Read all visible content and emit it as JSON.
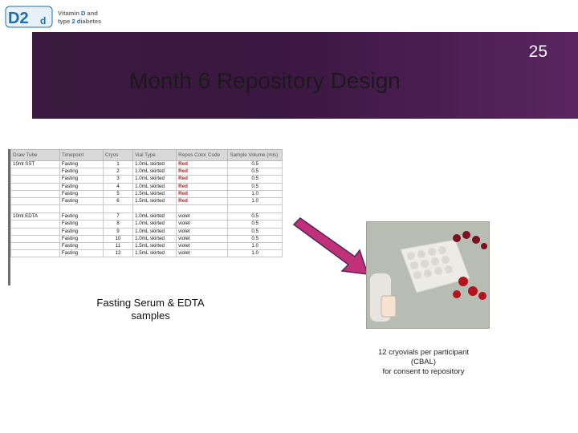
{
  "logo": {
    "mark": "D2d",
    "line1_a": "Vitamin ",
    "line1_b": "D",
    "line1_c": " and",
    "line2_a": "type ",
    "line2_b": "2",
    "line2_c": " ",
    "line2_d": "d",
    "line2_e": "iabetes"
  },
  "slide_number": "25",
  "title": "Month 6 Repository Design",
  "table": {
    "headers": [
      "Draw Tube",
      "Timepoint",
      "Cryos",
      "Vial Type",
      "Repos Color Code",
      "Sample Volume (mls)"
    ],
    "groups": [
      {
        "tube": "10ml SST",
        "rows": [
          [
            "Fasting",
            "1",
            "1.0mL skirted",
            "Red",
            "0.5"
          ],
          [
            "Fasting",
            "2",
            "1.0mL skirted",
            "Red",
            "0.5"
          ],
          [
            "Fasting",
            "3",
            "1.0mL skirted",
            "Red",
            "0.5"
          ],
          [
            "Fasting",
            "4",
            "1.0mL skirted",
            "Red",
            "0.5"
          ],
          [
            "Fasting",
            "5",
            "1.5mL skirted",
            "Red",
            "1.0"
          ],
          [
            "Fasting",
            "6",
            "1.5mL skirted",
            "Red",
            "1.0"
          ]
        ]
      },
      {
        "tube": "10ml EDTA",
        "rows": [
          [
            "Fasting",
            "7",
            "1.0mL skirted",
            "violet",
            "0.5"
          ],
          [
            "Fasting",
            "8",
            "1.0mL skirted",
            "violet",
            "0.5"
          ],
          [
            "Fasting",
            "9",
            "1.0mL skirted",
            "violet",
            "0.5"
          ],
          [
            "Fasting",
            "10",
            "1.0mL skirted",
            "violet",
            "0.5"
          ],
          [
            "Fasting",
            "11",
            "1.5mL skirted",
            "violet",
            "1.0"
          ],
          [
            "Fasting",
            "12",
            "1.5mL skirted",
            "violet",
            "1.0"
          ]
        ]
      }
    ]
  },
  "caption": {
    "line1": "Fasting Serum & EDTA",
    "line2": "samples"
  },
  "note": {
    "line1": "12 cryovials per participant",
    "line2": "(CBAL)",
    "line3": "for consent to repository"
  },
  "colors": {
    "banner": "#3b1a40",
    "arrow": "#c2307a",
    "red_code": "#d01010"
  }
}
